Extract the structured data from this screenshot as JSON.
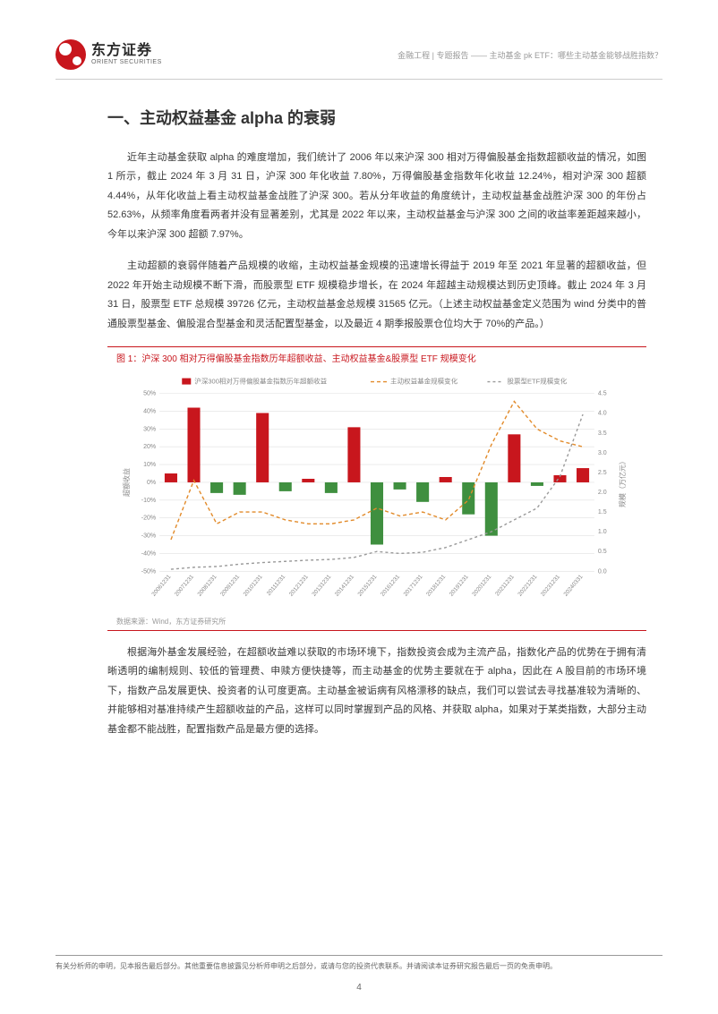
{
  "header": {
    "logo_cn": "东方证券",
    "logo_en": "ORIENT SECURITIES",
    "right_text": "金融工程 | 专题报告 —— 主动基金 pk ETF：哪些主动基金能够战胜指数？"
  },
  "section": {
    "title": "一、主动权益基金 alpha 的衰弱",
    "para1": "近年主动基金获取 alpha 的难度增加，我们统计了 2006 年以来沪深 300 相对万得偏股基金指数超额收益的情况，如图 1 所示，截止 2024 年 3 月 31 日，沪深 300 年化收益 7.80%，万得偏股基金指数年化收益 12.24%，相对沪深 300 超额 4.44%，从年化收益上看主动权益基金战胜了沪深 300。若从分年收益的角度统计，主动权益基金战胜沪深 300 的年份占 52.63%，从频率角度看两者并没有显著差别，尤其是 2022 年以来，主动权益基金与沪深 300 之间的收益率差距越来越小，今年以来沪深 300 超额 7.97%。",
    "para2": "主动超额的衰弱伴随着产品规模的收缩，主动权益基金规模的迅速增长得益于 2019 年至 2021 年显著的超额收益，但 2022 年开始主动规模不断下滑，而股票型 ETF 规模稳步增长，在 2024 年超越主动规模达到历史顶峰。截止 2024 年 3 月 31 日，股票型 ETF 总规模 39726 亿元，主动权益基金总规模 31565 亿元。（上述主动权益基金定义范围为 wind 分类中的普通股票型基金、偏股混合型基金和灵活配置型基金，以及最近 4 期季报股票仓位均大于 70%的产品。）",
    "para3": "根据海外基金发展经验，在超额收益难以获取的市场环境下，指数投资会成为主流产品，指数化产品的优势在于拥有清晰透明的编制规则、较低的管理费、申赎方便快捷等，而主动基金的优势主要就在于 alpha，因此在 A 股目前的市场环境下，指数产品发展更快、投资者的认可度更高。主动基金被诟病有风格漂移的缺点，我们可以尝试去寻找基准较为清晰的、并能够相对基准持续产生超额收益的产品，这样可以同时掌握到产品的风格、并获取 alpha，如果对于某类指数，大部分主动基金都不能战胜，配置指数产品是最方便的选择。"
  },
  "figure": {
    "title": "图 1：沪深 300 相对万得偏股基金指数历年超额收益、主动权益基金&股票型 ETF 规模变化",
    "source": "数据来源：Wind，东方证券研究所",
    "chart": {
      "type": "combo-bar-line",
      "x_labels": [
        "20061231",
        "20071231",
        "20081231",
        "20091231",
        "20101231",
        "20111231",
        "20121231",
        "20131231",
        "20141231",
        "20151231",
        "20161231",
        "20171231",
        "20181231",
        "20191231",
        "20201231",
        "20211231",
        "20221231",
        "20231231",
        "20240331"
      ],
      "y_left": {
        "label": "超额收益",
        "min": -50,
        "max": 50,
        "step": 10,
        "unit": "%"
      },
      "y_right": {
        "label": "规模（万亿元）",
        "min": 0.0,
        "max": 4.5,
        "step": 0.5
      },
      "bars": {
        "name": "沪深300相对万得偏股基金指数历年超额收益",
        "values": [
          5,
          42,
          -6,
          -7,
          39,
          -5,
          2,
          -6,
          31,
          -35,
          -4,
          -11,
          3,
          -18,
          -30,
          27,
          -2,
          4,
          8
        ],
        "pos_color": "#c8161d",
        "neg_color": "#3f8f3f",
        "bar_width": 0.55
      },
      "line_active": {
        "name": "主动权益基金规模变化",
        "values": [
          0.8,
          2.3,
          1.2,
          1.5,
          1.5,
          1.3,
          1.2,
          1.2,
          1.3,
          1.6,
          1.4,
          1.5,
          1.3,
          1.8,
          3.2,
          4.3,
          3.6,
          3.3,
          3.15
        ],
        "color": "#e28b2b",
        "dash": "4 3"
      },
      "line_etf": {
        "name": "股票型ETF规模变化",
        "values": [
          0.05,
          0.1,
          0.12,
          0.18,
          0.22,
          0.25,
          0.28,
          0.3,
          0.35,
          0.5,
          0.45,
          0.48,
          0.6,
          0.8,
          1.0,
          1.3,
          1.6,
          2.4,
          3.97
        ],
        "color": "#9a9a9a",
        "dash": "3 3"
      },
      "background_color": "#ffffff",
      "grid_color": "#e0e0e0",
      "label_fontsize": 8,
      "tick_fontsize": 7
    }
  },
  "footer": {
    "text": "有关分析师的申明，见本报告最后部分。其他重要信息披露见分析师申明之后部分，或请与您的投资代表联系。并请阅读本证券研究报告最后一页的免责申明。",
    "page": "4"
  }
}
